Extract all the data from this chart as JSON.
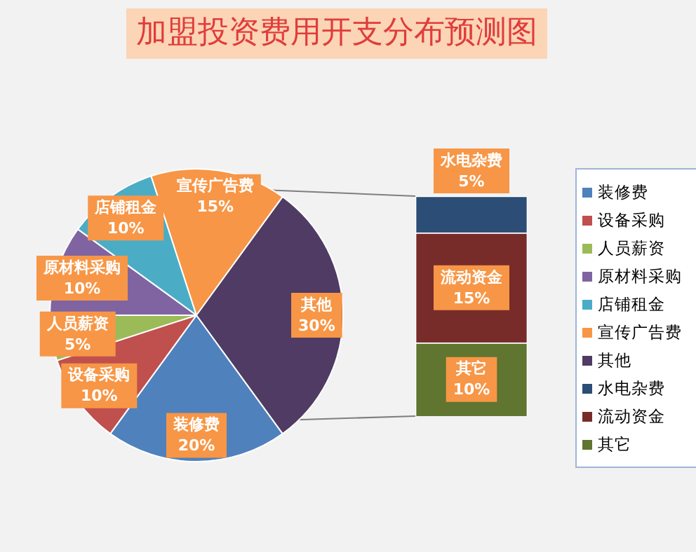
{
  "chart_data": [
    {
      "type": "pie",
      "title": "加盟投资费用开支分布预测图",
      "categories": [
        "装修费",
        "设备采购",
        "人员薪资",
        "原材料采购",
        "店铺租金",
        "宣传广告费",
        "其他"
      ],
      "values": [
        20,
        10,
        5,
        10,
        10,
        15,
        30
      ],
      "colors": [
        "#4f81bd",
        "#c0504d",
        "#9bbb59",
        "#8064a2",
        "#4bacc6",
        "#f79646",
        "#4f3b63"
      ],
      "value_labels": [
        "20%",
        "10%",
        "5%",
        "10%",
        "10%",
        "15%",
        "30%"
      ],
      "legend": "right"
    },
    {
      "type": "bar",
      "stacked": true,
      "categories": [
        null
      ],
      "legend": "right",
      "series": [
        {
          "name": "其它",
          "color": "#5f7530",
          "values": [
            10
          ],
          "value_labels": [
            "10%"
          ]
        },
        {
          "name": "流动资金",
          "color": "#772c2a",
          "values": [
            15
          ],
          "value_labels": [
            "15%"
          ]
        },
        {
          "name": "水电杂费",
          "color": "#2c4d75",
          "values": [
            5
          ],
          "value_labels": [
            "5%"
          ]
        }
      ]
    }
  ]
}
